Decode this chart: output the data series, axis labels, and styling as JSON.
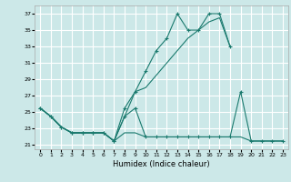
{
  "xlabel": "Humidex (Indice chaleur)",
  "bg_color": "#cce8e8",
  "grid_color": "#ffffff",
  "line_color": "#1a7a6e",
  "xlim": [
    -0.5,
    23.5
  ],
  "ylim": [
    20.5,
    38.0
  ],
  "xticks": [
    0,
    1,
    2,
    3,
    4,
    5,
    6,
    7,
    8,
    9,
    10,
    11,
    12,
    13,
    14,
    15,
    16,
    17,
    18,
    19,
    20,
    21,
    22,
    23
  ],
  "yticks": [
    21,
    23,
    25,
    27,
    29,
    31,
    33,
    35,
    37
  ],
  "line1_x": [
    0,
    1,
    2,
    3,
    4,
    5,
    6,
    7,
    8,
    9,
    10,
    11,
    12,
    13,
    14,
    15,
    16,
    17,
    18
  ],
  "line1_y": [
    25.5,
    24.5,
    23.2,
    22.5,
    22.5,
    22.5,
    22.5,
    21.5,
    25.5,
    27.5,
    30.0,
    32.5,
    34.0,
    37.0,
    35.0,
    35.0,
    37.0,
    37.0,
    33.0
  ],
  "line2_x": [
    0,
    1,
    2,
    3,
    4,
    5,
    6,
    7,
    8,
    9,
    10,
    11,
    12,
    13,
    14,
    15,
    16,
    17,
    18
  ],
  "line2_y": [
    25.5,
    24.5,
    23.2,
    22.5,
    22.5,
    22.5,
    22.5,
    21.5,
    24.5,
    27.5,
    28.0,
    29.5,
    31.0,
    32.5,
    34.0,
    35.0,
    36.0,
    36.5,
    33.0
  ],
  "line3_x": [
    0,
    1,
    2,
    3,
    4,
    5,
    6,
    7,
    8,
    9,
    10,
    11,
    12,
    13,
    14,
    15,
    16,
    17,
    18,
    19,
    20,
    21,
    22,
    23
  ],
  "line3_y": [
    25.5,
    24.5,
    23.2,
    22.5,
    22.5,
    22.5,
    22.5,
    21.5,
    24.5,
    25.5,
    22.0,
    22.0,
    22.0,
    22.0,
    22.0,
    22.0,
    22.0,
    22.0,
    22.0,
    27.5,
    21.5,
    21.5,
    21.5,
    21.5
  ],
  "line4_x": [
    0,
    1,
    2,
    3,
    4,
    5,
    6,
    7,
    8,
    9,
    10,
    11,
    12,
    13,
    14,
    15,
    16,
    17,
    18,
    19,
    20,
    21,
    22,
    23
  ],
  "line4_y": [
    25.5,
    24.5,
    23.2,
    22.5,
    22.5,
    22.5,
    22.5,
    21.5,
    22.5,
    22.5,
    22.0,
    22.0,
    22.0,
    22.0,
    22.0,
    22.0,
    22.0,
    22.0,
    22.0,
    22.0,
    21.5,
    21.5,
    21.5,
    21.5
  ]
}
